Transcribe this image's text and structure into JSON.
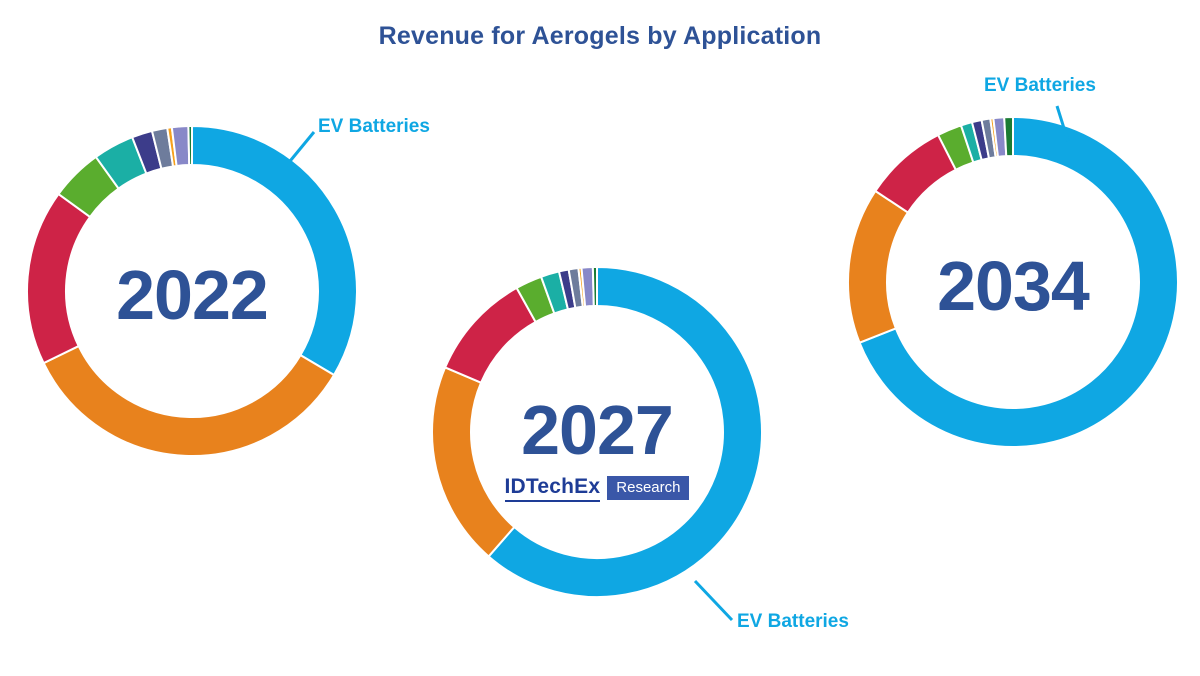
{
  "title": "Revenue for Aerogels by Application",
  "logo": {
    "brand": "IDTechEx",
    "division": "Research"
  },
  "colors": {
    "background": "#FFFFFF",
    "title_blue": "#2E5296",
    "accent_blue": "#0FA7E3",
    "logo_brand_blue": "#1E3C96",
    "logo_box_blue": "#3A57A8",
    "separator": "#FFFFFF"
  },
  "chart_data": [
    {
      "type": "pie",
      "donut": true,
      "title": "2022",
      "center_label": "2022",
      "annotation": "EV Batteries",
      "legend_position": "callout-top-right",
      "start_angle_deg": 0,
      "direction": "clockwise",
      "segments": [
        {
          "name": "EV Batteries",
          "color": "#0FA7E3",
          "percent": 33.5
        },
        {
          "name": "unlabeled (orange)",
          "color": "#E8821D",
          "percent": 34.3
        },
        {
          "name": "unlabeled (red)",
          "color": "#CE2347",
          "percent": 17.2
        },
        {
          "name": "unlabeled (green)",
          "color": "#5AAD2E",
          "percent": 5.1
        },
        {
          "name": "unlabeled (teal)",
          "color": "#1BAFA5",
          "percent": 4.0
        },
        {
          "name": "unlabeled (indigo)",
          "color": "#3C3C8A",
          "percent": 2.0
        },
        {
          "name": "unlabeled (slate)",
          "color": "#6E7C9C",
          "percent": 1.5
        },
        {
          "name": "unlabeled (amber)",
          "color": "#F6A01B",
          "percent": 0.45
        },
        {
          "name": "unlabeled (lavender)",
          "color": "#8888C8",
          "percent": 1.6
        },
        {
          "name": "unlabeled (dark-green)",
          "color": "#1B7B34",
          "percent": 0.35
        }
      ]
    },
    {
      "type": "pie",
      "donut": true,
      "title": "2027",
      "center_label": "2027",
      "annotation": "EV Batteries",
      "legend_position": "callout-bottom-right",
      "start_angle_deg": 0,
      "direction": "clockwise",
      "segments": [
        {
          "name": "EV Batteries",
          "color": "#0FA7E3",
          "percent": 61.4
        },
        {
          "name": "unlabeled (orange)",
          "color": "#E8821D",
          "percent": 20.0
        },
        {
          "name": "unlabeled (red)",
          "color": "#CE2347",
          "percent": 10.5
        },
        {
          "name": "unlabeled (green)",
          "color": "#5AAD2E",
          "percent": 2.6
        },
        {
          "name": "unlabeled (teal)",
          "color": "#1BAFA5",
          "percent": 1.8
        },
        {
          "name": "unlabeled (indigo)",
          "color": "#3C3C8A",
          "percent": 0.95
        },
        {
          "name": "unlabeled (slate)",
          "color": "#6E7C9C",
          "percent": 0.95
        },
        {
          "name": "unlabeled (amber)",
          "color": "#F6A01B",
          "percent": 0.3
        },
        {
          "name": "unlabeled (lavender)",
          "color": "#8888C8",
          "percent": 1.1
        },
        {
          "name": "unlabeled (dark-green)",
          "color": "#1B7B34",
          "percent": 0.4
        }
      ]
    },
    {
      "type": "pie",
      "donut": true,
      "title": "2034",
      "center_label": "2034",
      "annotation": "EV Batteries",
      "legend_position": "callout-top-right",
      "start_angle_deg": 0,
      "direction": "clockwise",
      "segments": [
        {
          "name": "EV Batteries",
          "color": "#0FA7E3",
          "percent": 69.0
        },
        {
          "name": "unlabeled (orange)",
          "color": "#E8821D",
          "percent": 15.3
        },
        {
          "name": "unlabeled (red)",
          "color": "#CE2347",
          "percent": 8.2
        },
        {
          "name": "unlabeled (green)",
          "color": "#5AAD2E",
          "percent": 2.4
        },
        {
          "name": "unlabeled (teal)",
          "color": "#1BAFA5",
          "percent": 1.1
        },
        {
          "name": "unlabeled (indigo)",
          "color": "#3C3C8A",
          "percent": 0.95
        },
        {
          "name": "unlabeled (slate)",
          "color": "#6E7C9C",
          "percent": 0.85
        },
        {
          "name": "unlabeled (amber)",
          "color": "#F6A01B",
          "percent": 0.3
        },
        {
          "name": "unlabeled (lavender)",
          "color": "#8888C8",
          "percent": 1.05
        },
        {
          "name": "unlabeled (dark-green)",
          "color": "#1B7B34",
          "percent": 0.85
        }
      ]
    }
  ]
}
